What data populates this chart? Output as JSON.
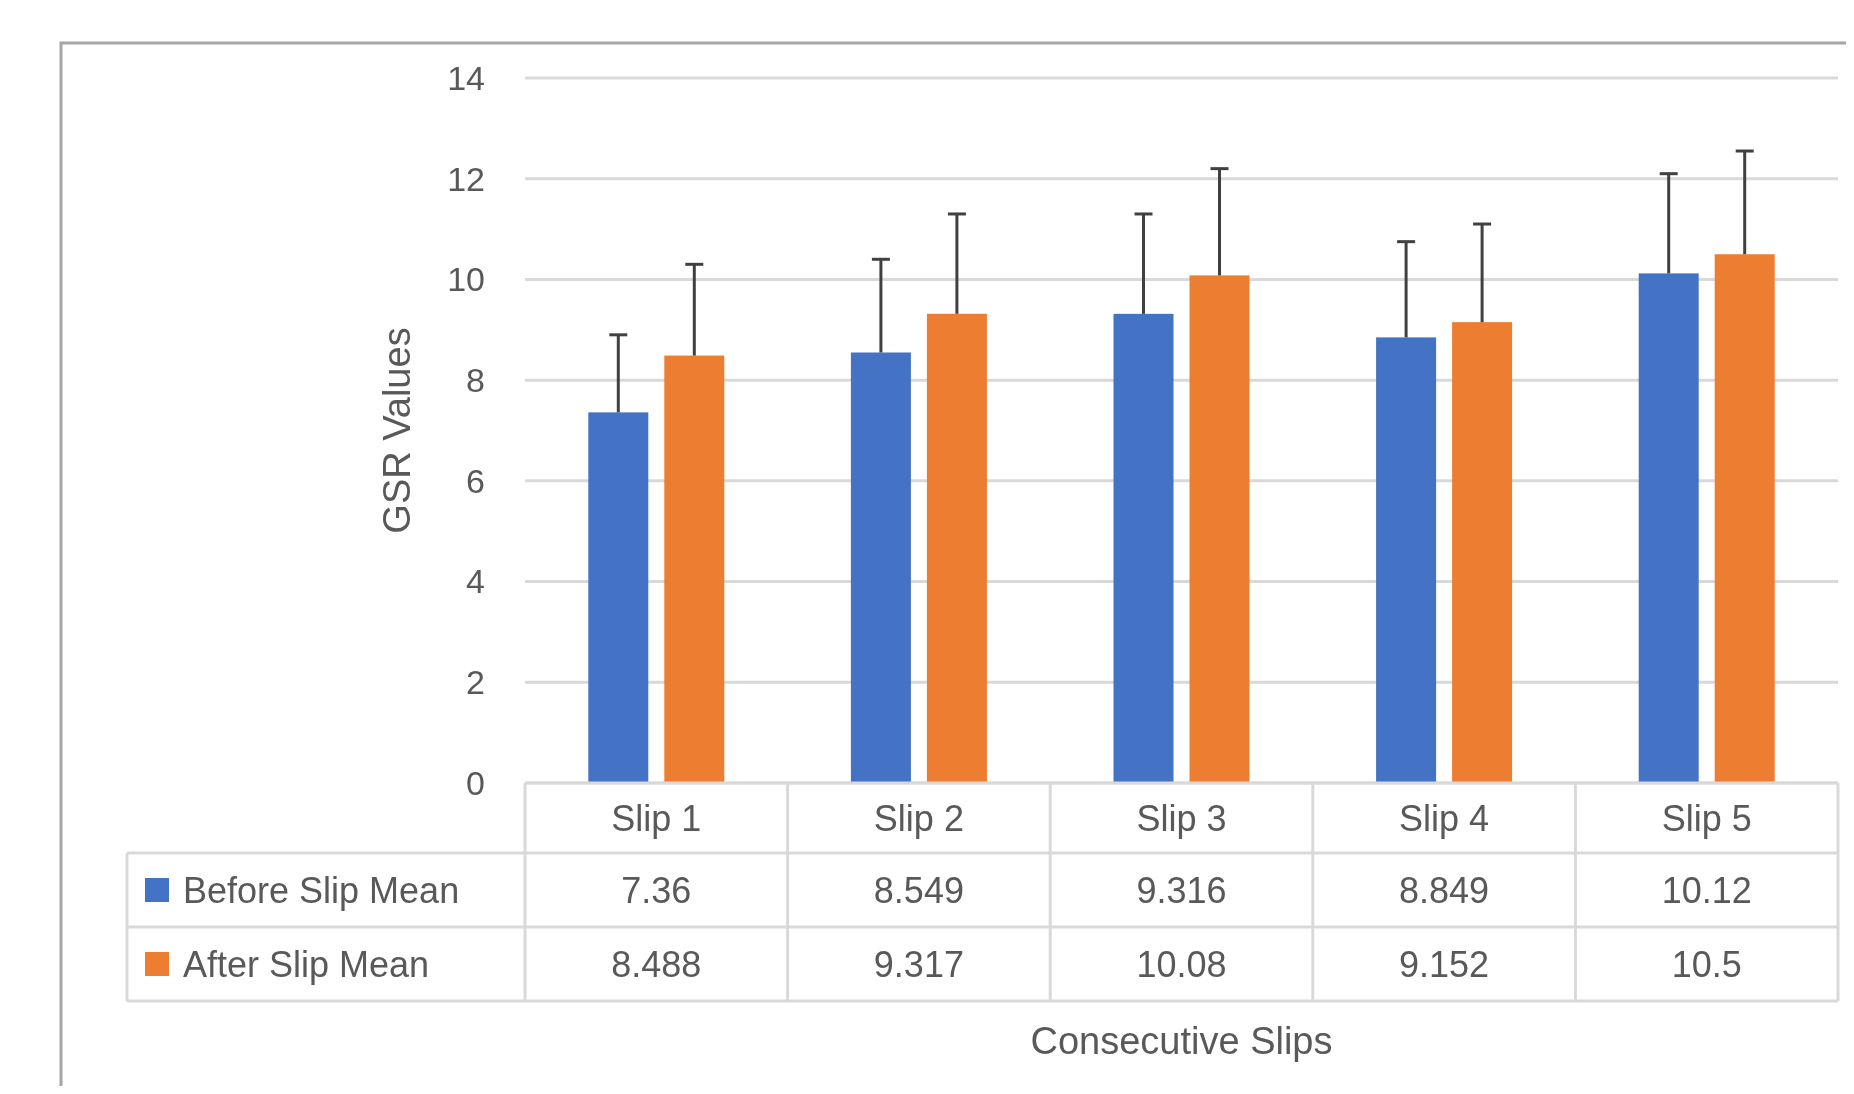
{
  "chart_data": {
    "type": "bar",
    "xlabel": "Consecutive Slips",
    "ylabel": "GSR Values",
    "categories": [
      "Slip 1",
      "Slip 2",
      "Slip 3",
      "Slip 4",
      "Slip 5"
    ],
    "series": [
      {
        "name": "Before Slip Mean",
        "color": "#4472c4",
        "values": [
          7.36,
          8.549,
          9.316,
          8.849,
          10.12
        ],
        "errors": [
          [
            7.36,
            8.9
          ],
          [
            8.549,
            10.4
          ],
          [
            9.316,
            11.3
          ],
          [
            8.849,
            10.75
          ],
          [
            10.12,
            12.1
          ]
        ]
      },
      {
        "name": "After Slip Mean",
        "color": "#ed7d31",
        "values": [
          8.488,
          9.317,
          10.08,
          9.152,
          10.5
        ],
        "errors": [
          [
            8.488,
            10.3
          ],
          [
            9.317,
            11.3
          ],
          [
            10.08,
            12.2
          ],
          [
            9.152,
            11.1
          ],
          [
            10.5,
            12.55
          ]
        ]
      }
    ],
    "ylim": [
      0,
      14
    ],
    "yticks": [
      0,
      2,
      4,
      6,
      8,
      10,
      12,
      14
    ],
    "grid": "y",
    "data_labels": true,
    "legend": "bottom"
  }
}
